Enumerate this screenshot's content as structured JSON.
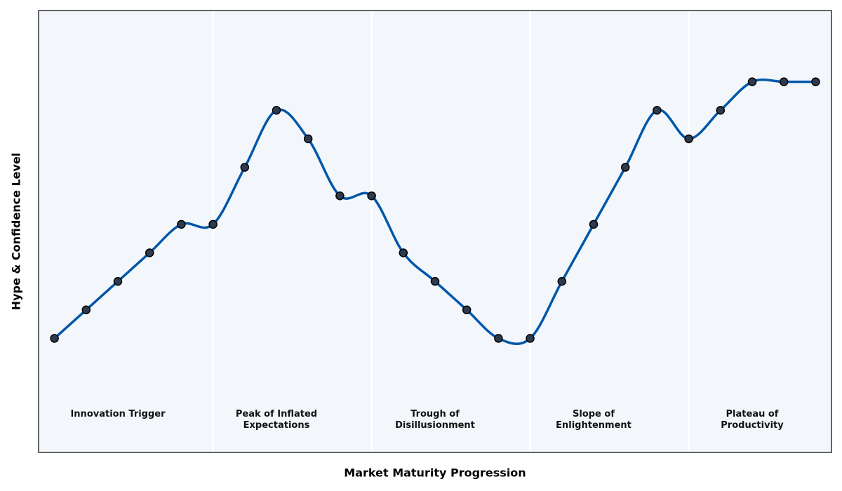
{
  "chart_data": {
    "type": "line",
    "xlabel": "Market Maturity Progression",
    "ylabel": "Hype & Confidence Level",
    "x": [
      0,
      1,
      2,
      3,
      4,
      5,
      6,
      7,
      8,
      9,
      10,
      11,
      12,
      13,
      14,
      15,
      16,
      17,
      18,
      19,
      20,
      21,
      22,
      23,
      24
    ],
    "series": [
      {
        "color": "#0057a8",
        "marker_color": "#2e3b4e",
        "values": [
          1,
          2,
          3,
          4,
          5,
          5,
          7,
          9,
          8,
          6,
          6,
          4,
          3,
          2,
          1,
          1,
          3,
          5,
          7,
          9,
          8,
          9,
          10,
          10,
          10
        ]
      }
    ],
    "xlim": [
      -0.5,
      24.5
    ],
    "ylim": [
      -3,
      12.5
    ],
    "phase_boundaries": [
      5,
      10,
      15,
      20
    ],
    "phases": [
      {
        "lines": [
          "Innovation Trigger"
        ],
        "center": 2
      },
      {
        "lines": [
          "Peak of Inflated",
          "Expectations"
        ],
        "center": 7
      },
      {
        "lines": [
          "Trough of",
          "Disillusionment"
        ],
        "center": 12
      },
      {
        "lines": [
          "Slope of",
          "Enlightenment"
        ],
        "center": 17
      },
      {
        "lines": [
          "Plateau of",
          "Productivity"
        ],
        "center": 22
      }
    ]
  }
}
